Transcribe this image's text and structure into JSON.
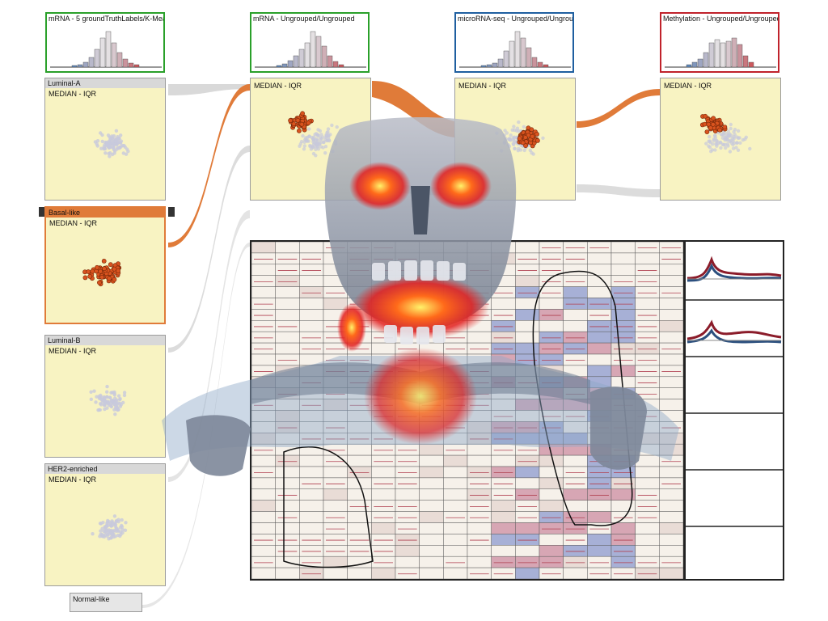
{
  "histograms": [
    {
      "title": "mRNA - 5 groundTruthLabels/K-Mea",
      "border": "#2aa02a"
    },
    {
      "title": "mRNA - Ungrouped/Ungrouped",
      "border": "#2aa02a"
    },
    {
      "title": "microRNA-seq - Ungrouped/Ungroup",
      "border": "#1f5fa0"
    },
    {
      "title": "Methylation - Ungrouped/Ungrouped",
      "border": "#c0222b"
    }
  ],
  "groups": [
    {
      "name": "Luminal-A",
      "subtitle": "MEDIAN - IQR"
    },
    {
      "name": "Basal-like",
      "subtitle": "MEDIAN - IQR"
    },
    {
      "name": "Luminal-B",
      "subtitle": "MEDIAN - IQR"
    },
    {
      "name": "HER2-enriched",
      "subtitle": "MEDIAN - IQR"
    },
    {
      "name": "Normal-like"
    }
  ],
  "columns": [
    {
      "subtitle": "MEDIAN - IQR"
    },
    {
      "subtitle": "MEDIAN - IQR"
    },
    {
      "subtitle": "MEDIAN - IQR"
    }
  ],
  "colors": {
    "selection": "#e07b39",
    "panel_bg": "#f8f3c2",
    "point_fill": "#d9531e",
    "point_faded": "#c8c9dc",
    "hist_blue": "#3a6fb0",
    "hist_red": "#c43a3a"
  },
  "icons": {
    "left_arrow": "chevron-left-icon",
    "right_arrow": "chevron-right-icon"
  }
}
